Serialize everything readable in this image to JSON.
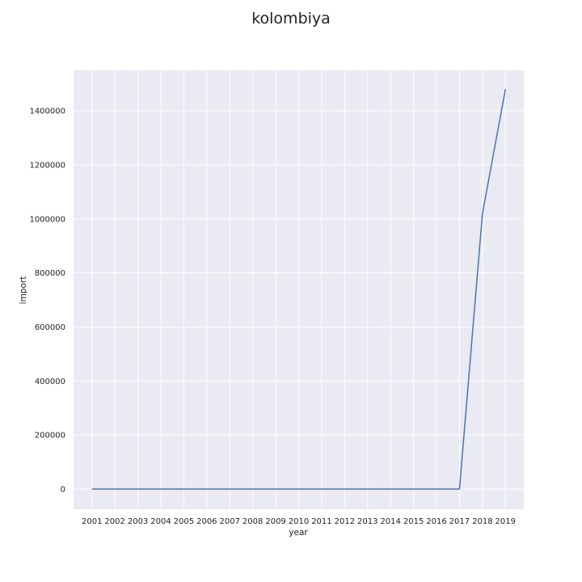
{
  "chart_data": {
    "type": "line",
    "title": "kolombiya",
    "xlabel": "year",
    "ylabel": "import",
    "x": [
      2001,
      2002,
      2003,
      2004,
      2005,
      2006,
      2007,
      2008,
      2009,
      2010,
      2011,
      2012,
      2013,
      2014,
      2015,
      2016,
      2017,
      2018,
      2019
    ],
    "series": [
      {
        "values": [
          0,
          0,
          0,
          0,
          0,
          0,
          0,
          0,
          0,
          0,
          0,
          0,
          0,
          0,
          0,
          0,
          0,
          1020000,
          1480000
        ]
      }
    ],
    "yticks": [
      0,
      200000,
      400000,
      600000,
      800000,
      1000000,
      1200000,
      1400000
    ],
    "ylim": [
      -75000,
      1550000
    ],
    "grid": true,
    "colors": {
      "line": "#4c72b0",
      "background": "#eaeaf2",
      "grid": "#ffffff"
    }
  }
}
